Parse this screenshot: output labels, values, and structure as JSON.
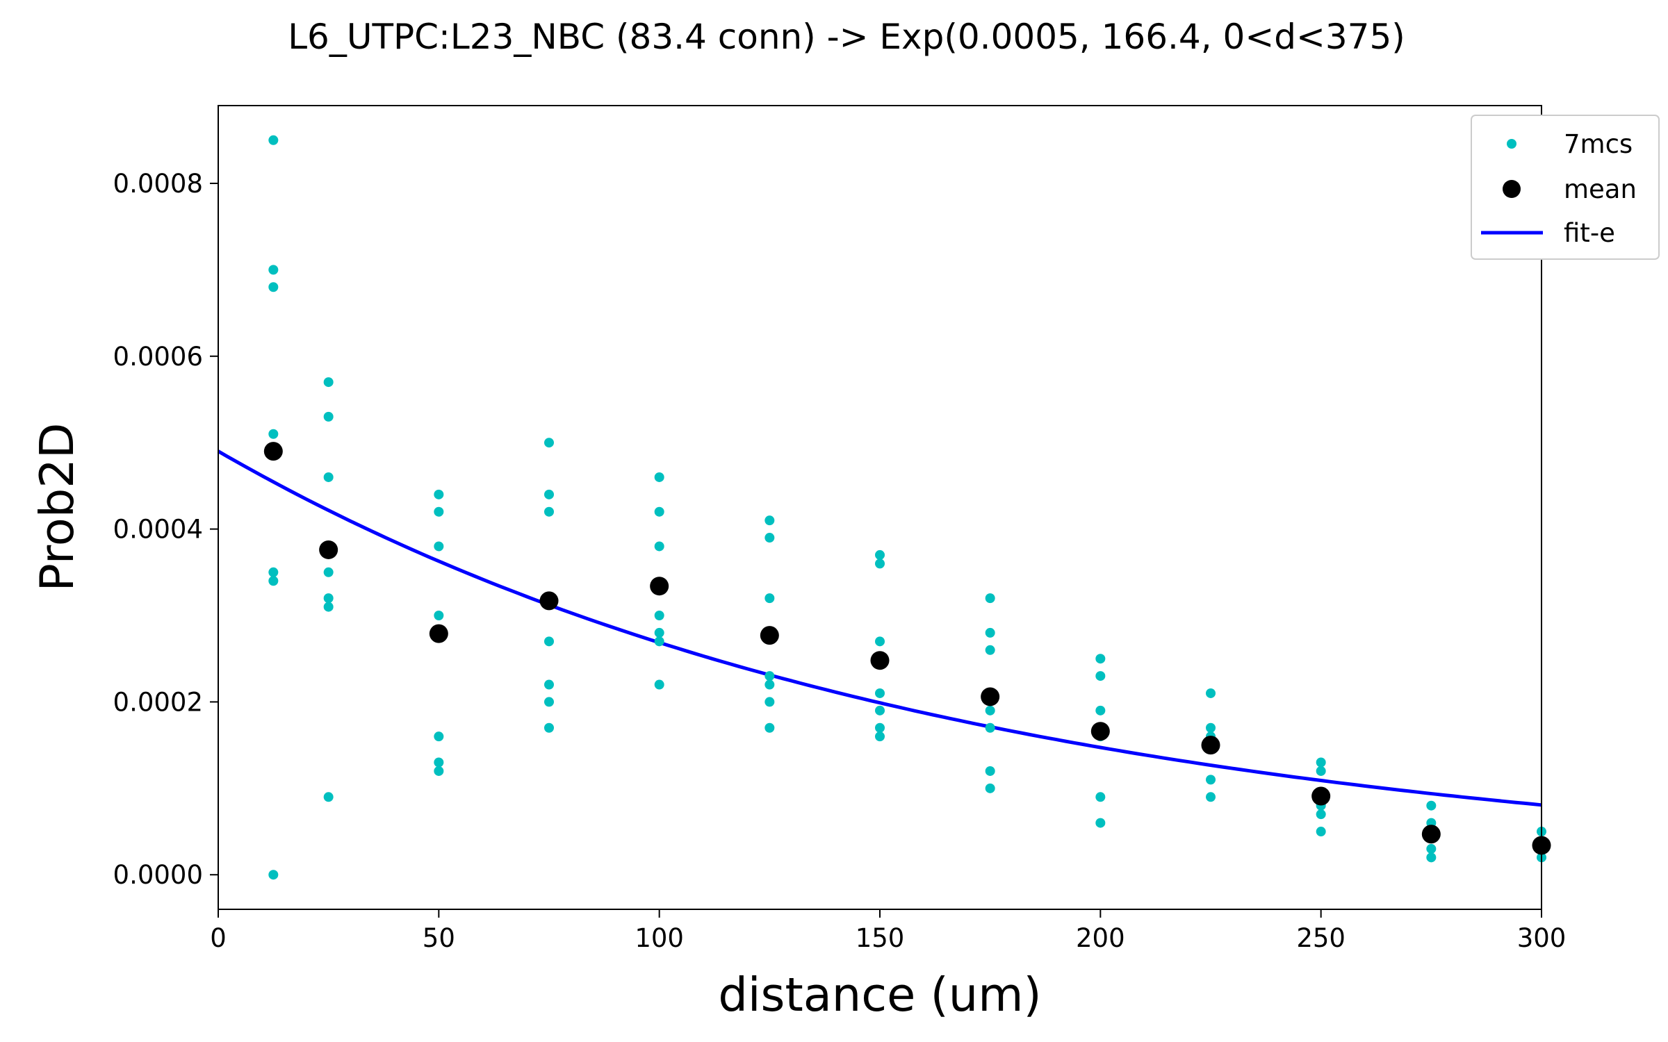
{
  "chart_data": {
    "type": "scatter",
    "title": "L6_UTPC:L23_NBC (83.4 conn) -> Exp(0.0005, 166.4, 0<d<375)",
    "xlabel": "distance (um)",
    "ylabel": "Prob2D",
    "xlim": [
      0,
      300
    ],
    "ylim": [
      -4e-05,
      0.00089
    ],
    "xticks": [
      0,
      50,
      100,
      150,
      200,
      250,
      300
    ],
    "xtick_labels": [
      "0",
      "50",
      "100",
      "150",
      "200",
      "250",
      "300"
    ],
    "yticks": [
      0.0,
      0.0002,
      0.0004,
      0.0006,
      0.0008
    ],
    "ytick_labels": [
      "0.0000",
      "0.0002",
      "0.0004",
      "0.0006",
      "0.0008"
    ],
    "grid": false,
    "legend_position": "upper-right",
    "series": [
      {
        "name": "7mcs",
        "kind": "points",
        "color": "#00bfbf",
        "points": [
          [
            12.5,
            0.00085
          ],
          [
            12.5,
            0.0007
          ],
          [
            12.5,
            0.00068
          ],
          [
            12.5,
            0.00051
          ],
          [
            12.5,
            0.00035
          ],
          [
            12.5,
            0.00034
          ],
          [
            12.5,
            0.0
          ],
          [
            25,
            0.00057
          ],
          [
            25,
            0.00053
          ],
          [
            25,
            0.00046
          ],
          [
            25,
            0.00035
          ],
          [
            25,
            0.00032
          ],
          [
            25,
            0.00031
          ],
          [
            25,
            9e-05
          ],
          [
            50,
            0.00044
          ],
          [
            50,
            0.00042
          ],
          [
            50,
            0.00038
          ],
          [
            50,
            0.0003
          ],
          [
            50,
            0.00016
          ],
          [
            50,
            0.00013
          ],
          [
            50,
            0.00012
          ],
          [
            75,
            0.0005
          ],
          [
            75,
            0.00044
          ],
          [
            75,
            0.00042
          ],
          [
            75,
            0.00027
          ],
          [
            75,
            0.00022
          ],
          [
            75,
            0.0002
          ],
          [
            75,
            0.00017
          ],
          [
            100,
            0.00046
          ],
          [
            100,
            0.00042
          ],
          [
            100,
            0.00038
          ],
          [
            100,
            0.0003
          ],
          [
            100,
            0.00028
          ],
          [
            100,
            0.00027
          ],
          [
            100,
            0.00022
          ],
          [
            125,
            0.00041
          ],
          [
            125,
            0.00039
          ],
          [
            125,
            0.00032
          ],
          [
            125,
            0.00023
          ],
          [
            125,
            0.00022
          ],
          [
            125,
            0.0002
          ],
          [
            125,
            0.00017
          ],
          [
            150,
            0.00037
          ],
          [
            150,
            0.00036
          ],
          [
            150,
            0.00027
          ],
          [
            150,
            0.00021
          ],
          [
            150,
            0.00019
          ],
          [
            150,
            0.00017
          ],
          [
            150,
            0.00016
          ],
          [
            175,
            0.00032
          ],
          [
            175,
            0.00028
          ],
          [
            175,
            0.00026
          ],
          [
            175,
            0.00019
          ],
          [
            175,
            0.00017
          ],
          [
            175,
            0.00012
          ],
          [
            175,
            0.0001
          ],
          [
            200,
            0.00025
          ],
          [
            200,
            0.00023
          ],
          [
            200,
            0.00019
          ],
          [
            200,
            0.00017
          ],
          [
            200,
            0.00016
          ],
          [
            200,
            9e-05
          ],
          [
            200,
            6e-05
          ],
          [
            225,
            0.00021
          ],
          [
            225,
            0.00017
          ],
          [
            225,
            0.00016
          ],
          [
            225,
            0.00015
          ],
          [
            225,
            0.00011
          ],
          [
            225,
            9e-05
          ],
          [
            250,
            0.00013
          ],
          [
            250,
            0.00012
          ],
          [
            250,
            9e-05
          ],
          [
            250,
            8e-05
          ],
          [
            250,
            7e-05
          ],
          [
            250,
            5e-05
          ],
          [
            275,
            8e-05
          ],
          [
            275,
            6e-05
          ],
          [
            275,
            5e-05
          ],
          [
            275,
            3e-05
          ],
          [
            275,
            2e-05
          ],
          [
            300,
            5e-05
          ],
          [
            300,
            3e-05
          ],
          [
            300,
            2e-05
          ]
        ]
      },
      {
        "name": "mean",
        "kind": "points",
        "color": "#000000",
        "points": [
          [
            12.5,
            0.00049
          ],
          [
            25,
            0.000376
          ],
          [
            50,
            0.000279
          ],
          [
            75,
            0.000317
          ],
          [
            100,
            0.000334
          ],
          [
            125,
            0.000277
          ],
          [
            150,
            0.000248
          ],
          [
            175,
            0.000206
          ],
          [
            200,
            0.000166
          ],
          [
            225,
            0.00015
          ],
          [
            250,
            9.1e-05
          ],
          [
            275,
            4.7e-05
          ],
          [
            300,
            3.4e-05
          ]
        ]
      },
      {
        "name": "fit-e",
        "kind": "line",
        "color": "#0000ff",
        "model": "exponential",
        "amplitude": 0.00049,
        "decay_length": 166.4
      }
    ]
  }
}
